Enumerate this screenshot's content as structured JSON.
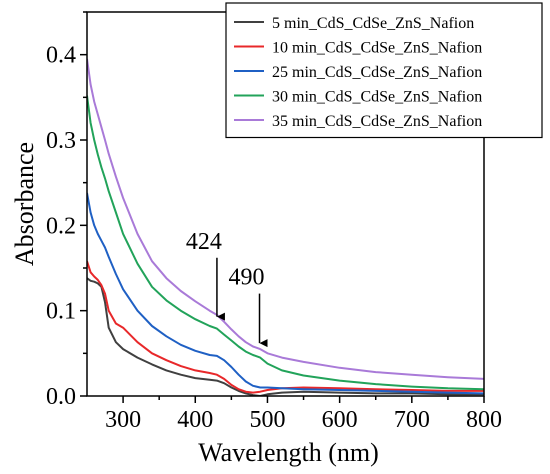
{
  "chart_data": {
    "type": "line",
    "title": "",
    "xlabel": "Wavelength (nm)",
    "ylabel": "Absorbance",
    "xlim": [
      250,
      800
    ],
    "ylim": [
      0,
      0.45
    ],
    "xticks": [
      300,
      400,
      500,
      600,
      700,
      800
    ],
    "yticks": [
      0.0,
      0.1,
      0.2,
      0.3,
      0.4
    ],
    "xtick_labels": [
      "300",
      "400",
      "500",
      "600",
      "700",
      "800"
    ],
    "ytick_labels": [
      "0.0",
      "0.1",
      "0.2",
      "0.3",
      "0.4"
    ],
    "grid": false,
    "legend_position": "top-right",
    "series": [
      {
        "name": "5 min_CdS_CdSe_ZnS_Nafion",
        "color": "#404040",
        "x": [
          250,
          255,
          260,
          265,
          270,
          275,
          280,
          290,
          300,
          320,
          340,
          360,
          380,
          400,
          420,
          430,
          440,
          450,
          460,
          470,
          480,
          490,
          500,
          520,
          550,
          600,
          650,
          700,
          750,
          800
        ],
        "y": [
          0.138,
          0.135,
          0.134,
          0.132,
          0.128,
          0.11,
          0.08,
          0.063,
          0.055,
          0.045,
          0.037,
          0.03,
          0.025,
          0.021,
          0.019,
          0.018,
          0.015,
          0.01,
          0.006,
          0.003,
          0.001,
          0.0,
          0.002,
          0.004,
          0.005,
          0.004,
          0.003,
          0.003,
          0.002,
          0.002
        ]
      },
      {
        "name": "10 min_CdS_CdSe_ZnS_Nafion",
        "color": "#e8282a",
        "x": [
          250,
          255,
          260,
          265,
          270,
          275,
          280,
          290,
          300,
          320,
          340,
          360,
          380,
          400,
          420,
          430,
          440,
          450,
          460,
          470,
          480,
          490,
          500,
          520,
          550,
          600,
          650,
          700,
          750,
          800
        ],
        "y": [
          0.158,
          0.145,
          0.14,
          0.136,
          0.13,
          0.12,
          0.1,
          0.085,
          0.08,
          0.063,
          0.05,
          0.042,
          0.035,
          0.03,
          0.027,
          0.025,
          0.02,
          0.013,
          0.008,
          0.005,
          0.004,
          0.005,
          0.007,
          0.009,
          0.01,
          0.009,
          0.008,
          0.007,
          0.006,
          0.006
        ]
      },
      {
        "name": "25 min_CdS_CdSe_ZnS_Nafion",
        "color": "#1f60c4",
        "x": [
          250,
          255,
          260,
          265,
          270,
          275,
          280,
          290,
          300,
          320,
          340,
          360,
          380,
          400,
          420,
          430,
          440,
          450,
          460,
          470,
          480,
          490,
          500,
          520,
          550,
          600,
          650,
          700,
          750,
          800
        ],
        "y": [
          0.238,
          0.215,
          0.2,
          0.19,
          0.182,
          0.174,
          0.163,
          0.143,
          0.125,
          0.1,
          0.082,
          0.07,
          0.06,
          0.053,
          0.048,
          0.047,
          0.042,
          0.034,
          0.025,
          0.017,
          0.012,
          0.01,
          0.01,
          0.009,
          0.008,
          0.007,
          0.006,
          0.005,
          0.004,
          0.003
        ]
      },
      {
        "name": "30 min_CdS_CdSe_ZnS_Nafion",
        "color": "#22a35a",
        "x": [
          250,
          255,
          260,
          265,
          270,
          275,
          280,
          290,
          300,
          320,
          340,
          360,
          380,
          400,
          420,
          430,
          440,
          450,
          460,
          470,
          480,
          490,
          500,
          520,
          550,
          600,
          650,
          700,
          750,
          800
        ],
        "y": [
          0.352,
          0.32,
          0.3,
          0.283,
          0.268,
          0.255,
          0.24,
          0.215,
          0.19,
          0.155,
          0.128,
          0.112,
          0.1,
          0.09,
          0.082,
          0.079,
          0.072,
          0.065,
          0.058,
          0.052,
          0.048,
          0.045,
          0.038,
          0.03,
          0.024,
          0.018,
          0.014,
          0.011,
          0.009,
          0.008
        ]
      },
      {
        "name": "35 min_CdS_CdSe_ZnS_Nafion",
        "color": "#a97ad8",
        "x": [
          250,
          255,
          260,
          265,
          270,
          275,
          280,
          290,
          300,
          320,
          340,
          360,
          380,
          400,
          420,
          430,
          440,
          450,
          460,
          470,
          480,
          490,
          500,
          520,
          550,
          600,
          650,
          700,
          750,
          800
        ],
        "y": [
          0.395,
          0.365,
          0.345,
          0.33,
          0.315,
          0.3,
          0.284,
          0.257,
          0.232,
          0.19,
          0.158,
          0.138,
          0.123,
          0.111,
          0.1,
          0.095,
          0.087,
          0.078,
          0.07,
          0.063,
          0.058,
          0.055,
          0.05,
          0.045,
          0.04,
          0.033,
          0.028,
          0.025,
          0.022,
          0.02
        ]
      }
    ],
    "annotations": [
      {
        "text": "424",
        "x": 430,
        "y_tip": 0.093,
        "y_tail": 0.162
      },
      {
        "text": "490",
        "x": 489,
        "y_tip": 0.062,
        "y_tail": 0.12
      }
    ]
  }
}
